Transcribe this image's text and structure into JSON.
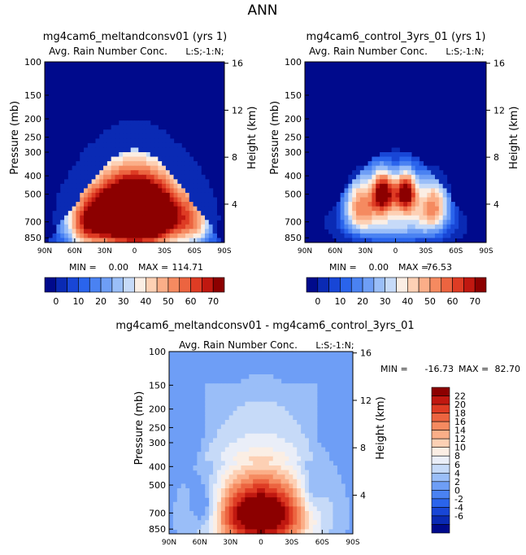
{
  "figure_title": "ANN",
  "colors": {
    "full_scale": [
      "#000a8c",
      "#0a2ab4",
      "#1846d6",
      "#2a64ec",
      "#4a82f2",
      "#6e9ef6",
      "#9abef8",
      "#c6daf8",
      "#fbeee4",
      "#fdd0b4",
      "#fbae88",
      "#f58a60",
      "#ec6440",
      "#de3c24",
      "#c01810",
      "#8c0000"
    ],
    "diff_scale": [
      "#000a8c",
      "#0a2ab4",
      "#1846d6",
      "#2a64ec",
      "#4a82f2",
      "#6e9ef6",
      "#9abef8",
      "#c6daf8",
      "#eaeef8",
      "#fbeee4",
      "#fdd0b4",
      "#fbae88",
      "#f58a60",
      "#ec6440",
      "#de3c24",
      "#c01810",
      "#8c0000"
    ]
  },
  "chart_data": [
    {
      "type": "heatmap",
      "title": "mg4cam6_meltandconsv01 (yrs 1)",
      "subtitle": "Avg. Rain Number Conc.",
      "units_note": "L:S;-1:N;",
      "ylabel": "Pressure (mb)",
      "y2label": "Height (km)",
      "x_ticks": [
        "90N",
        "60N",
        "30N",
        "0",
        "30S",
        "60S",
        "90S"
      ],
      "y_ticks": [
        "100",
        "150",
        "200",
        "250",
        "300",
        "400",
        "500",
        "700",
        "850"
      ],
      "y2_ticks": [
        "16",
        "12",
        "8",
        "4"
      ],
      "stats": {
        "min_label": "MIN =",
        "min": "0.00",
        "max_label": "MAX =",
        "max": "114.71"
      },
      "colorbar_ticks": [
        "0",
        "10",
        "20",
        "30",
        "40",
        "50",
        "60",
        "70"
      ],
      "field": {
        "kind": "blob",
        "peaks": [
          {
            "lat": 0,
            "p": 640,
            "amp": 115,
            "slat": 40,
            "sp": 220
          },
          {
            "lat": 50,
            "p": 760,
            "amp": 20,
            "slat": 12,
            "sp": 150
          },
          {
            "lat": -62,
            "p": 720,
            "amp": 18,
            "slat": 12,
            "sp": 160
          }
        ],
        "top_p": 290,
        "top_lat_width": 72
      }
    },
    {
      "type": "heatmap",
      "title": "mg4cam6_control_3yrs_01 (yrs 1)",
      "subtitle": "Avg. Rain Number Conc.",
      "units_note": "L:S;-1:N;",
      "ylabel": "Pressure (mb)",
      "y2label": "Height (km)",
      "x_ticks": [
        "90N",
        "60N",
        "30N",
        "0",
        "30S",
        "60S",
        "90S"
      ],
      "y_ticks": [
        "100",
        "150",
        "200",
        "250",
        "300",
        "400",
        "500",
        "700",
        "850"
      ],
      "y2_ticks": [
        "16",
        "12",
        "8",
        "4"
      ],
      "stats": {
        "min_label": "MIN =",
        "min": "0.00",
        "max_label": "MAX =",
        "max": "76.53"
      },
      "colorbar_ticks": [
        "0",
        "10",
        "20",
        "30",
        "40",
        "50",
        "60",
        "70"
      ],
      "field": {
        "kind": "arc",
        "peaks": [
          {
            "lat": 12,
            "p": 490,
            "amp": 70,
            "slat": 8,
            "sp": 90
          },
          {
            "lat": -10,
            "p": 490,
            "amp": 70,
            "slat": 8,
            "sp": 90
          },
          {
            "lat": 35,
            "p": 560,
            "amp": 45,
            "slat": 12,
            "sp": 140
          },
          {
            "lat": -38,
            "p": 560,
            "amp": 45,
            "slat": 12,
            "sp": 140
          },
          {
            "lat": 0,
            "p": 720,
            "amp": 30,
            "slat": 30,
            "sp": 120
          }
        ],
        "top_p": 290,
        "top_lat_width": 72
      }
    },
    {
      "type": "heatmap",
      "title": "mg4cam6_meltandconsv01 - mg4cam6_control_3yrs_01",
      "subtitle": "Avg. Rain Number Conc.",
      "units_note": "L:S;-1:N;",
      "ylabel": "Pressure (mb)",
      "y2label": "Height (km)",
      "x_ticks": [
        "90N",
        "60N",
        "30N",
        "0",
        "30S",
        "60S",
        "90S"
      ],
      "y_ticks": [
        "100",
        "150",
        "200",
        "250",
        "300",
        "400",
        "500",
        "700",
        "850"
      ],
      "y2_ticks": [
        "16",
        "12",
        "8",
        "4"
      ],
      "stats": {
        "min_label": "MIN =",
        "min": "-16.73",
        "max_label": "MAX =",
        "max": "82.70"
      },
      "colorbar_ticks": [
        "22",
        "20",
        "18",
        "16",
        "14",
        "12",
        "10",
        "8",
        "6",
        "4",
        "2",
        "0",
        "-2",
        "-4",
        "-6"
      ],
      "field": {
        "kind": "diff",
        "peaks": [
          {
            "lat": 0,
            "p": 720,
            "amp": 40,
            "slat": 34,
            "sp": 230
          },
          {
            "lat": 55,
            "p": 650,
            "amp": -10,
            "slat": 10,
            "sp": 130
          },
          {
            "lat": -50,
            "p": 560,
            "amp": -6,
            "slat": 8,
            "sp": 120
          }
        ],
        "top_p": 380,
        "top_lat_width": 70
      }
    }
  ]
}
